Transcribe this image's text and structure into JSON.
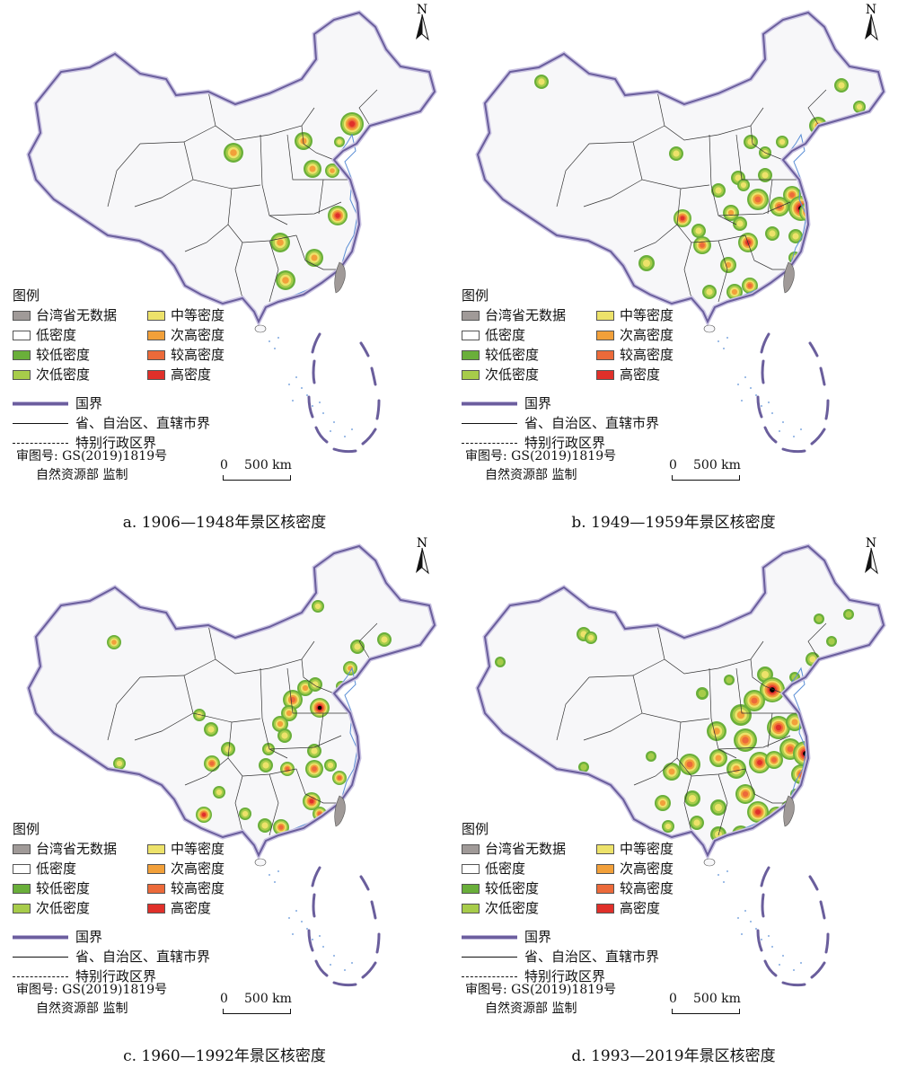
{
  "panels": [
    {
      "id": "a",
      "caption": "a. 1906—1948年景区核密度",
      "hotspots": [
        {
          "c": [
            392,
            138
          ],
          "r": 13,
          "level": 6
        },
        {
          "c": [
            260,
            170
          ],
          "r": 11,
          "level": 4
        },
        {
          "c": [
            338,
            157
          ],
          "r": 10,
          "level": 4
        },
        {
          "c": [
            348,
            188
          ],
          "r": 10,
          "level": 4
        },
        {
          "c": [
            370,
            190
          ],
          "r": 8,
          "level": 4
        },
        {
          "c": [
            378,
            158
          ],
          "r": 6,
          "level": 3
        },
        {
          "c": [
            376,
            240
          ],
          "r": 11,
          "level": 6
        },
        {
          "c": [
            312,
            270
          ],
          "r": 11,
          "level": 4
        },
        {
          "c": [
            350,
            287
          ],
          "r": 10,
          "level": 4
        },
        {
          "c": [
            318,
            312
          ],
          "r": 11,
          "level": 4
        }
      ]
    },
    {
      "id": "b",
      "caption": "b. 1949—1959年景区核密度",
      "hotspots": [
        {
          "c": [
            103,
            91
          ],
          "r": 8,
          "level": 3
        },
        {
          "c": [
            437,
            95
          ],
          "r": 8,
          "level": 3
        },
        {
          "c": [
            457,
            119
          ],
          "r": 7,
          "level": 3
        },
        {
          "c": [
            411,
            140
          ],
          "r": 10,
          "level": 4
        },
        {
          "c": [
            402,
            159
          ],
          "r": 5,
          "level": 3
        },
        {
          "c": [
            253,
            171
          ],
          "r": 8,
          "level": 3
        },
        {
          "c": [
            336,
            158
          ],
          "r": 8,
          "level": 3
        },
        {
          "c": [
            371,
            158
          ],
          "r": 7,
          "level": 3
        },
        {
          "c": [
            379,
            181
          ],
          "r": 6,
          "level": 3
        },
        {
          "c": [
            352,
            170
          ],
          "r": 7,
          "level": 3
        },
        {
          "c": [
            322,
            198
          ],
          "r": 8,
          "level": 3
        },
        {
          "c": [
            328,
            206
          ],
          "r": 7,
          "level": 3
        },
        {
          "c": [
            352,
            195
          ],
          "r": 8,
          "level": 3
        },
        {
          "c": [
            300,
            212
          ],
          "r": 8,
          "level": 3
        },
        {
          "c": [
            344,
            222
          ],
          "r": 12,
          "level": 5
        },
        {
          "c": [
            368,
            230
          ],
          "r": 11,
          "level": 5
        },
        {
          "c": [
            382,
            217
          ],
          "r": 10,
          "level": 5
        },
        {
          "c": [
            392,
            232
          ],
          "r": 14,
          "level": 7
        },
        {
          "c": [
            401,
            236
          ],
          "r": 11,
          "level": 7
        },
        {
          "c": [
            314,
            237
          ],
          "r": 9,
          "level": 4
        },
        {
          "c": [
            260,
            243
          ],
          "r": 10,
          "level": 6
        },
        {
          "c": [
            278,
            257
          ],
          "r": 8,
          "level": 3
        },
        {
          "c": [
            324,
            249
          ],
          "r": 8,
          "level": 3
        },
        {
          "c": [
            360,
            260
          ],
          "r": 8,
          "level": 3
        },
        {
          "c": [
            386,
            263
          ],
          "r": 8,
          "level": 3
        },
        {
          "c": [
            220,
            293
          ],
          "r": 9,
          "level": 3
        },
        {
          "c": [
            282,
            273
          ],
          "r": 10,
          "level": 5
        },
        {
          "c": [
            333,
            270
          ],
          "r": 11,
          "level": 6
        },
        {
          "c": [
            311,
            295
          ],
          "r": 9,
          "level": 4
        },
        {
          "c": [
            385,
            287
          ],
          "r": 7,
          "level": 3
        },
        {
          "c": [
            290,
            325
          ],
          "r": 8,
          "level": 3
        },
        {
          "c": [
            318,
            325
          ],
          "r": 9,
          "level": 4
        },
        {
          "c": [
            335,
            318
          ],
          "r": 9,
          "level": 5
        },
        {
          "c": [
            368,
            322
          ],
          "r": 8,
          "level": 3
        }
      ]
    },
    {
      "id": "c",
      "caption": "c. 1960—1992年景区核密度",
      "hotspots": [
        {
          "c": [
            127,
            121
          ],
          "r": 8,
          "level": 4
        },
        {
          "c": [
            354,
            81
          ],
          "r": 7,
          "level": 3
        },
        {
          "c": [
            428,
            118
          ],
          "r": 8,
          "level": 3
        },
        {
          "c": [
            398,
            126
          ],
          "r": 8,
          "level": 3
        },
        {
          "c": [
            390,
            150
          ],
          "r": 8,
          "level": 4
        },
        {
          "c": [
            380,
            170
          ],
          "r": 6,
          "level": 3
        },
        {
          "c": [
            340,
            172
          ],
          "r": 9,
          "level": 4
        },
        {
          "c": [
            351,
            168
          ],
          "r": 8,
          "level": 3
        },
        {
          "c": [
            326,
            185
          ],
          "r": 11,
          "level": 5
        },
        {
          "c": [
            322,
            200
          ],
          "r": 9,
          "level": 4
        },
        {
          "c": [
            356,
            194
          ],
          "r": 11,
          "level": 7
        },
        {
          "c": [
            312,
            212
          ],
          "r": 9,
          "level": 4
        },
        {
          "c": [
            317,
            225
          ],
          "r": 8,
          "level": 3
        },
        {
          "c": [
            222,
            202
          ],
          "r": 7,
          "level": 3
        },
        {
          "c": [
            235,
            218
          ],
          "r": 8,
          "level": 3
        },
        {
          "c": [
            254,
            240
          ],
          "r": 8,
          "level": 3
        },
        {
          "c": [
            236,
            256
          ],
          "r": 9,
          "level": 5
        },
        {
          "c": [
            299,
            240
          ],
          "r": 7,
          "level": 3
        },
        {
          "c": [
            296,
            258
          ],
          "r": 8,
          "level": 3
        },
        {
          "c": [
            320,
            262
          ],
          "r": 8,
          "level": 5
        },
        {
          "c": [
            350,
            242
          ],
          "r": 8,
          "level": 3
        },
        {
          "c": [
            350,
            262
          ],
          "r": 10,
          "level": 5
        },
        {
          "c": [
            368,
            258
          ],
          "r": 7,
          "level": 3
        },
        {
          "c": [
            378,
            272
          ],
          "r": 8,
          "level": 5
        },
        {
          "c": [
            133,
            256
          ],
          "r": 7,
          "level": 3
        },
        {
          "c": [
            244,
            288
          ],
          "r": 7,
          "level": 3
        },
        {
          "c": [
            227,
            313
          ],
          "r": 9,
          "level": 6
        },
        {
          "c": [
            273,
            312
          ],
          "r": 7,
          "level": 3
        },
        {
          "c": [
            295,
            325
          ],
          "r": 8,
          "level": 3
        },
        {
          "c": [
            313,
            327
          ],
          "r": 9,
          "level": 5
        },
        {
          "c": [
            347,
            298
          ],
          "r": 10,
          "level": 6
        },
        {
          "c": [
            356,
            312
          ],
          "r": 8,
          "level": 5
        },
        {
          "c": [
            371,
            312
          ],
          "r": 7,
          "level": 3
        },
        {
          "c": [
            284,
            368
          ],
          "r": 7,
          "level": 5
        }
      ]
    },
    {
      "id": "d",
      "caption": "d. 1993—2019年景区核密度",
      "hotspots": [
        {
          "c": [
            150,
            112
          ],
          "r": 8,
          "level": 3
        },
        {
          "c": [
            158,
            116
          ],
          "r": 7,
          "level": 3
        },
        {
          "c": [
            57,
            143
          ],
          "r": 6,
          "level": 2
        },
        {
          "c": [
            445,
            90
          ],
          "r": 6,
          "level": 2
        },
        {
          "c": [
            412,
            95
          ],
          "r": 6,
          "level": 2
        },
        {
          "c": [
            426,
            120
          ],
          "r": 6,
          "level": 2
        },
        {
          "c": [
            405,
            140
          ],
          "r": 8,
          "level": 3
        },
        {
          "c": [
            385,
            160
          ],
          "r": 6,
          "level": 2
        },
        {
          "c": [
            352,
            157
          ],
          "r": 9,
          "level": 3
        },
        {
          "c": [
            312,
            163
          ],
          "r": 6,
          "level": 2
        },
        {
          "c": [
            282,
            178
          ],
          "r": 7,
          "level": 2
        },
        {
          "c": [
            360,
            174
          ],
          "r": 14,
          "level": 7
        },
        {
          "c": [
            340,
            186
          ],
          "r": 12,
          "level": 5
        },
        {
          "c": [
            325,
            202
          ],
          "r": 12,
          "level": 4
        },
        {
          "c": [
            298,
            220
          ],
          "r": 11,
          "level": 4
        },
        {
          "c": [
            330,
            230
          ],
          "r": 13,
          "level": 5
        },
        {
          "c": [
            367,
            216
          ],
          "r": 13,
          "level": 6
        },
        {
          "c": [
            385,
            210
          ],
          "r": 10,
          "level": 4
        },
        {
          "c": [
            380,
            240
          ],
          "r": 12,
          "level": 5
        },
        {
          "c": [
            397,
            245
          ],
          "r": 14,
          "level": 7
        },
        {
          "c": [
            392,
            268
          ],
          "r": 11,
          "level": 5
        },
        {
          "c": [
            346,
            255
          ],
          "r": 12,
          "level": 6
        },
        {
          "c": [
            362,
            252
          ],
          "r": 10,
          "level": 5
        },
        {
          "c": [
            320,
            262
          ],
          "r": 11,
          "level": 4
        },
        {
          "c": [
            300,
            250
          ],
          "r": 10,
          "level": 4
        },
        {
          "c": [
            268,
            257
          ],
          "r": 12,
          "level": 5
        },
        {
          "c": [
            248,
            265
          ],
          "r": 10,
          "level": 4
        },
        {
          "c": [
            225,
            248
          ],
          "r": 6,
          "level": 2
        },
        {
          "c": [
            150,
            260
          ],
          "r": 6,
          "level": 2
        },
        {
          "c": [
            238,
            300
          ],
          "r": 9,
          "level": 4
        },
        {
          "c": [
            244,
            326
          ],
          "r": 7,
          "level": 3
        },
        {
          "c": [
            271,
            295
          ],
          "r": 9,
          "level": 3
        },
        {
          "c": [
            276,
            322
          ],
          "r": 8,
          "level": 3
        },
        {
          "c": [
            300,
            305
          ],
          "r": 9,
          "level": 3
        },
        {
          "c": [
            330,
            290
          ],
          "r": 11,
          "level": 5
        },
        {
          "c": [
            344,
            310
          ],
          "r": 12,
          "level": 6
        },
        {
          "c": [
            365,
            314
          ],
          "r": 10,
          "level": 5
        },
        {
          "c": [
            378,
            305
          ],
          "r": 8,
          "level": 4
        },
        {
          "c": [
            300,
            335
          ],
          "r": 9,
          "level": 3
        },
        {
          "c": [
            325,
            335
          ],
          "r": 10,
          "level": 4
        },
        {
          "c": [
            350,
            338
          ],
          "r": 8,
          "level": 3
        },
        {
          "c": [
            296,
            358
          ],
          "r": 8,
          "level": 4
        },
        {
          "c": [
            386,
            290
          ],
          "r": 6,
          "level": 2
        },
        {
          "c": [
            408,
            200
          ],
          "r": 6,
          "level": 2
        },
        {
          "c": [
            236,
            345
          ],
          "r": 7,
          "level": 3
        },
        {
          "c": [
            262,
            340
          ],
          "r": 8,
          "level": 3
        }
      ]
    }
  ],
  "legend": {
    "title": "图例",
    "items": [
      {
        "label": "台湾省无数据",
        "color": "#a09a98"
      },
      {
        "label": "中等密度",
        "color": "#ede26a"
      },
      {
        "label": "低密度",
        "color": "#ffffff"
      },
      {
        "label": "次高密度",
        "color": "#f2a03a"
      },
      {
        "label": "较低密度",
        "color": "#6aaf3a"
      },
      {
        "label": "较高密度",
        "color": "#ec6a3a"
      },
      {
        "label": "次低密度",
        "color": "#a7cc4a"
      },
      {
        "label": "高密度",
        "color": "#e0302a"
      }
    ],
    "lines": [
      {
        "label": "国界",
        "kind": "national"
      },
      {
        "label": "省、自治区、直辖市界",
        "kind": "province"
      },
      {
        "label": "特别行政区界",
        "kind": "sar"
      }
    ]
  },
  "approval": {
    "line1": "审图号: GS(2019)1819号",
    "line2": "自然资源部 监制"
  },
  "scalebar": {
    "zero": "0",
    "label": "500 km"
  },
  "north_label": "N",
  "colors": {
    "land": "#f7f7f9",
    "border": "#6a5e9c",
    "border_halo": "#c9c2e2",
    "province": "#333333",
    "river": "#5b8fd6",
    "taiwan": "#a09a98",
    "density": [
      "#ffffff",
      "#6aaf3a",
      "#a7cc4a",
      "#ede26a",
      "#f2a03a",
      "#ec6a3a",
      "#e0302a"
    ]
  }
}
